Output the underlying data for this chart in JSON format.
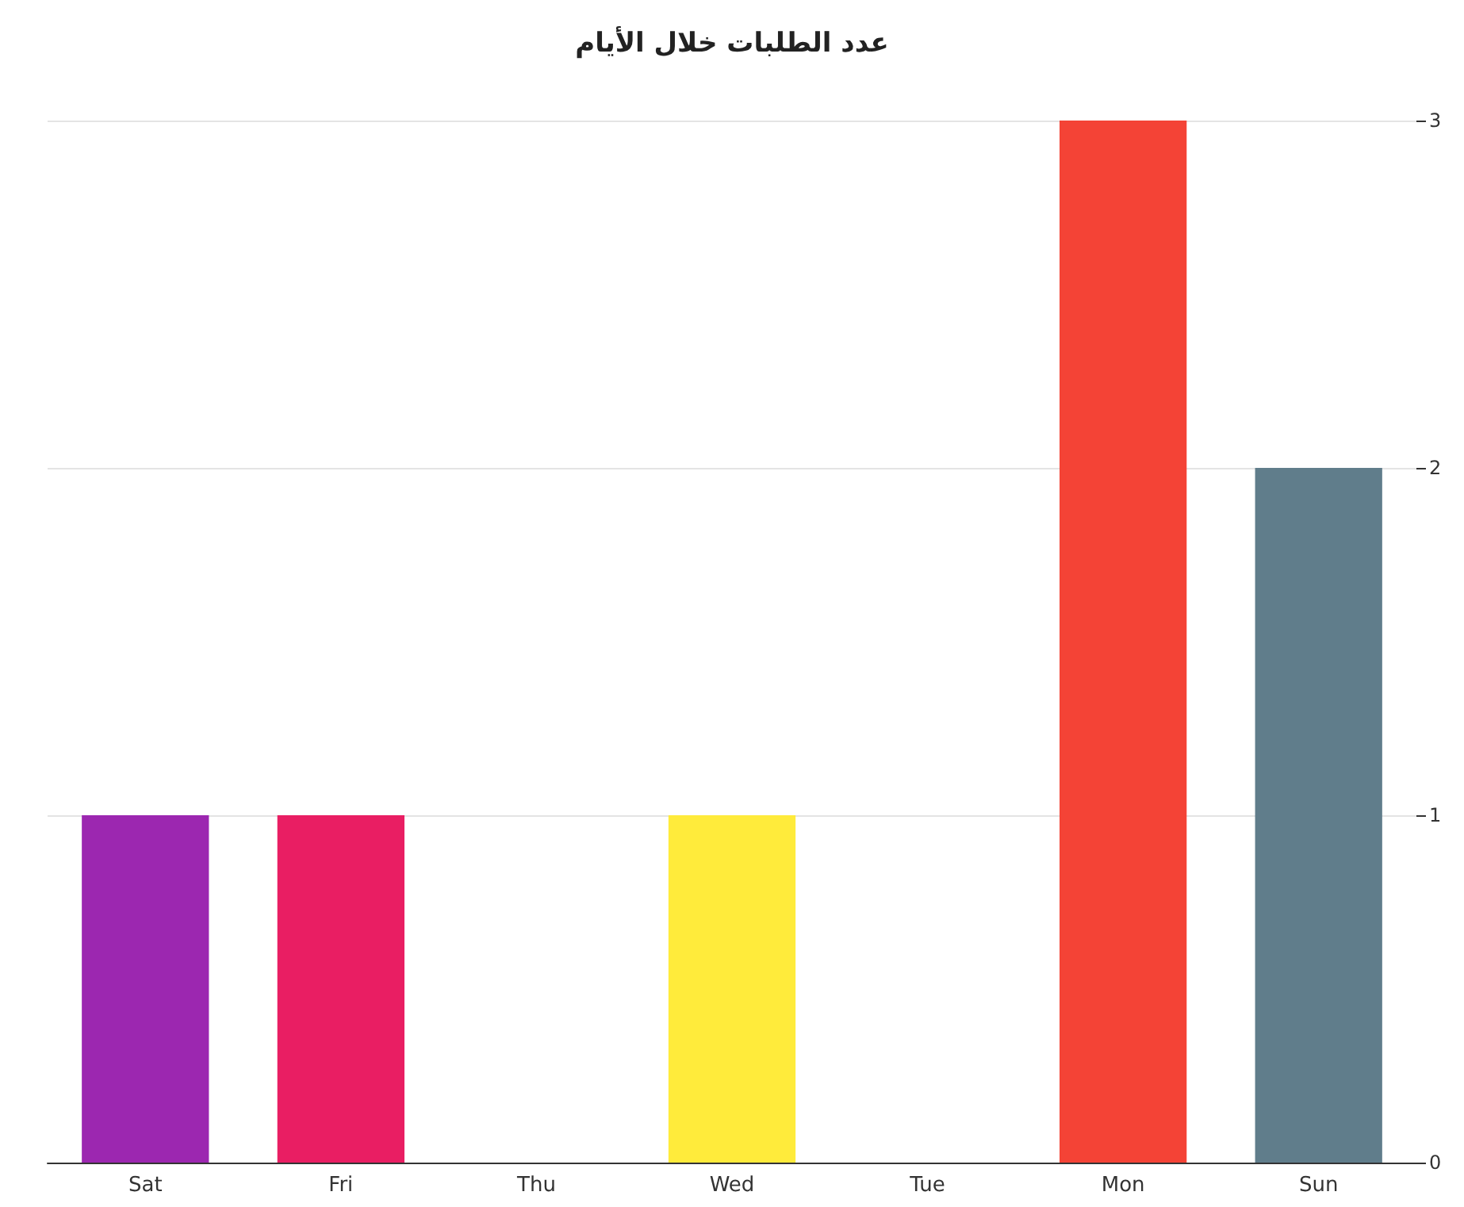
{
  "chart_data": {
    "type": "bar",
    "title": "عدد الطلبات خلال الأيام",
    "categories": [
      "Sat",
      "Fri",
      "Thu",
      "Wed",
      "Tue",
      "Mon",
      "Sun"
    ],
    "values": [
      1,
      1,
      0,
      1,
      0,
      3,
      2
    ],
    "colors": [
      "#9c27b0",
      "#e91e63",
      "#2196f3",
      "#ffeb3b",
      "#4caf50",
      "#f44336",
      "#607d8b"
    ],
    "ylim": [
      0,
      3
    ],
    "yticks": [
      0,
      1,
      2,
      3
    ],
    "grid": "y"
  }
}
